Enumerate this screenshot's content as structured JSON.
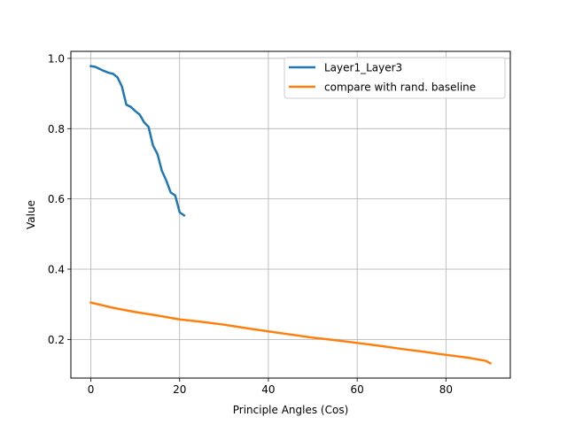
{
  "chart_data": {
    "type": "line",
    "title": "",
    "xlabel": "Principle Angles (Cos)",
    "ylabel": "Value",
    "xlim": [
      -4.5,
      94.5
    ],
    "ylim": [
      0.09,
      1.02
    ],
    "xticks": [
      0,
      20,
      40,
      60,
      80
    ],
    "yticks": [
      0.2,
      0.4,
      0.6,
      0.8,
      1.0
    ],
    "xtick_labels": [
      "0",
      "20",
      "40",
      "60",
      "80"
    ],
    "ytick_labels": [
      "0.2",
      "0.4",
      "0.6",
      "0.8",
      "1.0"
    ],
    "grid": true,
    "legend_position": "top-right",
    "series": [
      {
        "name": "Layer1_Layer3",
        "color": "#1f77b4",
        "x": [
          0,
          1,
          2,
          3,
          4,
          5,
          6,
          7,
          8,
          9,
          10,
          11,
          12,
          13,
          14,
          15,
          16,
          17,
          18,
          19,
          20,
          21
        ],
        "y": [
          0.978,
          0.976,
          0.97,
          0.964,
          0.959,
          0.956,
          0.946,
          0.92,
          0.868,
          0.862,
          0.85,
          0.84,
          0.818,
          0.805,
          0.752,
          0.728,
          0.68,
          0.652,
          0.618,
          0.61,
          0.562,
          0.553
        ]
      },
      {
        "name": "compare with rand. baseline",
        "color": "#ff7f0e",
        "x": [
          0,
          5,
          10,
          15,
          20,
          25,
          30,
          35,
          40,
          45,
          50,
          55,
          60,
          65,
          70,
          75,
          80,
          85,
          89,
          90
        ],
        "y": [
          0.305,
          0.29,
          0.278,
          0.268,
          0.257,
          0.25,
          0.242,
          0.232,
          0.223,
          0.214,
          0.205,
          0.198,
          0.19,
          0.182,
          0.173,
          0.165,
          0.156,
          0.148,
          0.139,
          0.132
        ]
      }
    ]
  },
  "colors": {
    "axis": "#000000",
    "grid": "#b0b0b0",
    "legend_border": "#cccccc"
  }
}
